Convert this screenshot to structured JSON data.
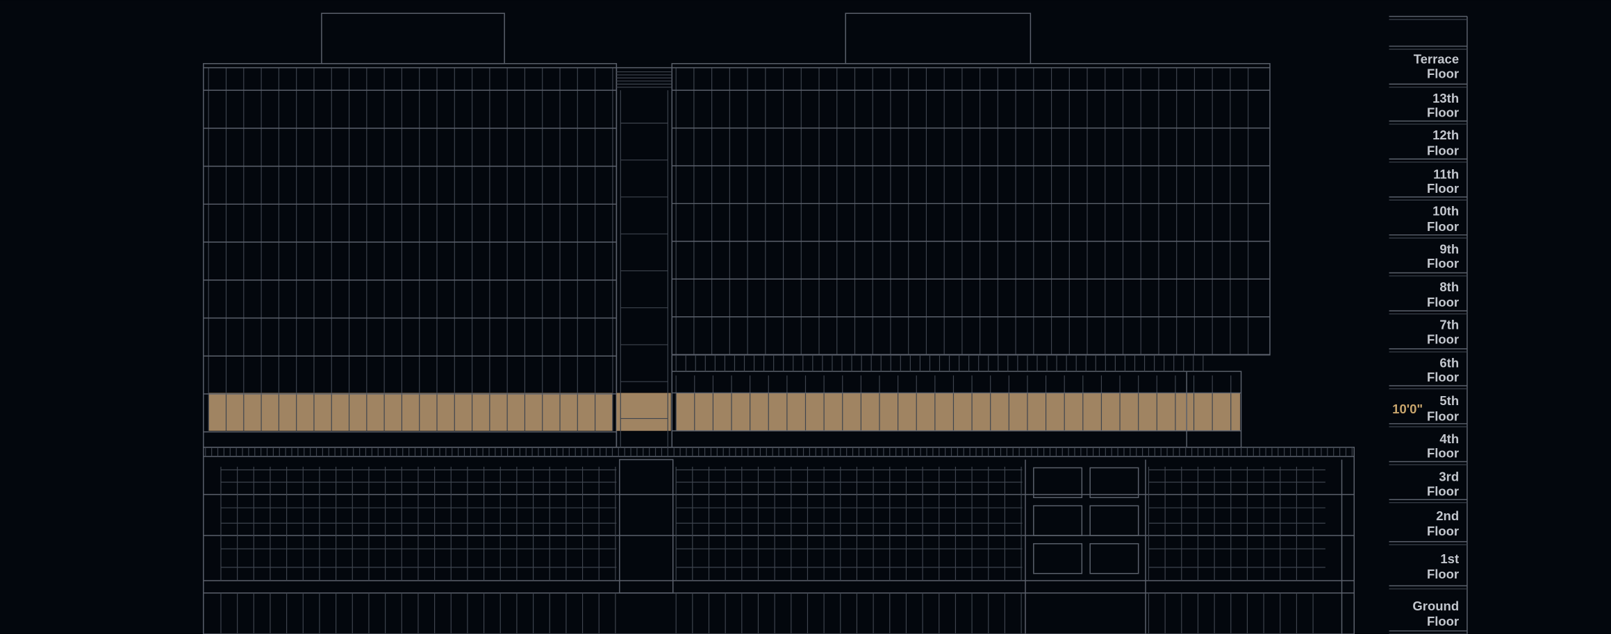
{
  "floors": [
    {
      "lines": [
        "Terrace",
        "Floor"
      ]
    },
    {
      "lines": [
        "13th",
        "Floor"
      ]
    },
    {
      "lines": [
        "12th",
        "Floor"
      ]
    },
    {
      "lines": [
        "11th",
        "Floor"
      ]
    },
    {
      "lines": [
        "10th",
        "Floor"
      ]
    },
    {
      "lines": [
        "9th",
        "Floor"
      ]
    },
    {
      "lines": [
        "8th",
        "Floor"
      ]
    },
    {
      "lines": [
        "7th",
        "Floor"
      ]
    },
    {
      "lines": [
        "6th",
        "Floor"
      ]
    },
    {
      "lines": [
        "5th",
        "Floor"
      ],
      "color": "#c9a66d"
    },
    {
      "lines": [
        "4th",
        "Floor"
      ]
    },
    {
      "lines": [
        "3rd",
        "Floor"
      ]
    },
    {
      "lines": [
        "2nd",
        "Floor"
      ]
    },
    {
      "lines": [
        "1st",
        "Floor"
      ]
    },
    {
      "lines": [
        "Ground",
        "Floor"
      ]
    }
  ],
  "dimension": "10'0\""
}
